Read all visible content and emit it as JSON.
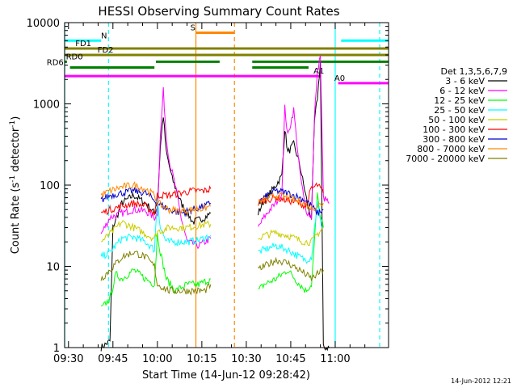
{
  "chart_data": {
    "type": "line",
    "title": "HESSI Observing Summary Count Rates",
    "xlabel": "Start Time (14-Jun-12 09:28:42)",
    "ylabel": "Count Rate (s⁻¹ detector⁻¹)",
    "ylabel_base": "Count Rate (s",
    "ylabel_mid": " detector",
    "ylabel_end": ")",
    "ylabel_sup": "-1",
    "yscale": "log",
    "ylim": [
      1,
      10000
    ],
    "xlim_minutes": [
      -1.3,
      108
    ],
    "y_ticks": [
      {
        "value": 1,
        "label": "1"
      },
      {
        "value": 10,
        "label": "10"
      },
      {
        "value": 100,
        "label": "100"
      },
      {
        "value": 1000,
        "label": "1000"
      },
      {
        "value": 10000,
        "label": "10000"
      }
    ],
    "x_ticks": [
      {
        "t": 0,
        "label": "09:30"
      },
      {
        "t": 15,
        "label": "09:45"
      },
      {
        "t": 30,
        "label": "10:00"
      },
      {
        "t": 45,
        "label": "10:15"
      },
      {
        "t": 60,
        "label": "10:30"
      },
      {
        "t": 75,
        "label": "10:45"
      },
      {
        "t": 90,
        "label": "11:00"
      }
    ],
    "legend_title": "Det 1,3,5,6,7,9",
    "legend_position": "right",
    "series": [
      {
        "name": "3 - 6 keV",
        "color": "#000000",
        "points": [
          [
            11,
            1
          ],
          [
            14,
            1.2
          ],
          [
            15,
            30
          ],
          [
            18,
            60
          ],
          [
            22,
            75
          ],
          [
            26,
            60
          ],
          [
            28,
            50
          ],
          [
            29,
            45
          ],
          [
            30,
            55
          ],
          [
            31,
            300
          ],
          [
            32,
            720
          ],
          [
            33,
            250
          ],
          [
            35,
            120
          ],
          [
            38,
            60
          ],
          [
            42,
            35
          ],
          [
            46,
            40
          ],
          [
            48,
            45
          ],
          [
            52,
            null
          ],
          [
            64,
            45
          ],
          [
            66,
            65
          ],
          [
            68,
            80
          ],
          [
            70,
            100
          ],
          [
            72,
            130
          ],
          [
            73,
            500
          ],
          [
            74,
            250
          ],
          [
            76,
            320
          ],
          [
            78,
            180
          ],
          [
            81,
            50
          ],
          [
            82,
            40
          ],
          [
            83,
            600
          ],
          [
            84,
            1200
          ],
          [
            85,
            3300
          ],
          [
            86,
            1
          ],
          [
            88,
            1
          ]
        ]
      },
      {
        "name": "6 - 12 keV",
        "color": "#ff00ff",
        "points": [
          [
            11,
            25
          ],
          [
            14,
            40
          ],
          [
            18,
            45
          ],
          [
            22,
            50
          ],
          [
            26,
            48
          ],
          [
            29,
            40
          ],
          [
            30,
            45
          ],
          [
            31,
            400
          ],
          [
            32,
            1450
          ],
          [
            33,
            400
          ],
          [
            34,
            200
          ],
          [
            36,
            100
          ],
          [
            38,
            40
          ],
          [
            40,
            20
          ],
          [
            44,
            18
          ],
          [
            48,
            22
          ],
          [
            52,
            null
          ],
          [
            64,
            30
          ],
          [
            66,
            40
          ],
          [
            68,
            50
          ],
          [
            70,
            60
          ],
          [
            72,
            80
          ],
          [
            73,
            900
          ],
          [
            74,
            400
          ],
          [
            76,
            850
          ],
          [
            78,
            150
          ],
          [
            80,
            50
          ],
          [
            82,
            40
          ],
          [
            83,
            700
          ],
          [
            84,
            2500
          ],
          [
            85,
            4000
          ],
          [
            86,
            70
          ],
          [
            88,
            60
          ]
        ]
      },
      {
        "name": "12 - 25 keV",
        "color": "#00ff00",
        "points": [
          [
            11,
            3
          ],
          [
            14,
            4
          ],
          [
            16,
            8
          ],
          [
            18,
            7
          ],
          [
            22,
            9
          ],
          [
            26,
            7
          ],
          [
            29,
            6
          ],
          [
            30,
            25
          ],
          [
            31,
            15
          ],
          [
            33,
            7
          ],
          [
            36,
            5
          ],
          [
            40,
            6
          ],
          [
            44,
            6
          ],
          [
            48,
            7
          ],
          [
            52,
            null
          ],
          [
            64,
            5
          ],
          [
            66,
            6
          ],
          [
            70,
            7
          ],
          [
            74,
            9
          ],
          [
            78,
            6
          ],
          [
            80,
            5
          ],
          [
            82,
            6
          ],
          [
            83,
            20
          ],
          [
            84,
            75
          ],
          [
            85,
            40
          ],
          [
            86,
            30
          ]
        ]
      },
      {
        "name": "25 - 50 keV",
        "color": "#00ffff",
        "points": [
          [
            11,
            13
          ],
          [
            14,
            15
          ],
          [
            18,
            22
          ],
          [
            22,
            23
          ],
          [
            26,
            20
          ],
          [
            29,
            16
          ],
          [
            30,
            70
          ],
          [
            31,
            30
          ],
          [
            33,
            20
          ],
          [
            36,
            20
          ],
          [
            40,
            20
          ],
          [
            44,
            21
          ],
          [
            48,
            24
          ],
          [
            52,
            null
          ],
          [
            64,
            15
          ],
          [
            66,
            16
          ],
          [
            70,
            18
          ],
          [
            74,
            16
          ],
          [
            78,
            13
          ],
          [
            80,
            12
          ],
          [
            82,
            13
          ],
          [
            83,
            30
          ],
          [
            84,
            60
          ],
          [
            85,
            35
          ],
          [
            86,
            30
          ]
        ]
      },
      {
        "name": "50 - 100 keV",
        "color": "#cccc00",
        "points": [
          [
            11,
            20
          ],
          [
            14,
            25
          ],
          [
            18,
            35
          ],
          [
            22,
            30
          ],
          [
            26,
            25
          ],
          [
            29,
            22
          ],
          [
            30,
            27
          ],
          [
            32,
            28
          ],
          [
            34,
            30
          ],
          [
            36,
            30
          ],
          [
            40,
            30
          ],
          [
            44,
            32
          ],
          [
            48,
            33
          ],
          [
            52,
            null
          ],
          [
            64,
            22
          ],
          [
            66,
            24
          ],
          [
            70,
            26
          ],
          [
            74,
            24
          ],
          [
            78,
            21
          ],
          [
            80,
            20
          ],
          [
            82,
            20
          ],
          [
            84,
            25
          ],
          [
            86,
            30
          ]
        ]
      },
      {
        "name": "100 - 300 keV",
        "color": "#ff0000",
        "points": [
          [
            11,
            45
          ],
          [
            14,
            50
          ],
          [
            18,
            55
          ],
          [
            22,
            60
          ],
          [
            26,
            55
          ],
          [
            29,
            45
          ],
          [
            30,
            75
          ],
          [
            34,
            75
          ],
          [
            38,
            80
          ],
          [
            42,
            85
          ],
          [
            46,
            85
          ],
          [
            48,
            90
          ],
          [
            52,
            null
          ],
          [
            64,
            60
          ],
          [
            66,
            65
          ],
          [
            70,
            70
          ],
          [
            74,
            65
          ],
          [
            78,
            60
          ],
          [
            80,
            55
          ],
          [
            82,
            90
          ],
          [
            84,
            100
          ],
          [
            85,
            90
          ],
          [
            86,
            80
          ]
        ]
      },
      {
        "name": "300 - 800 keV",
        "color": "#0000cc",
        "points": [
          [
            11,
            65
          ],
          [
            14,
            75
          ],
          [
            18,
            80
          ],
          [
            22,
            85
          ],
          [
            26,
            80
          ],
          [
            29,
            65
          ],
          [
            30,
            60
          ],
          [
            34,
            50
          ],
          [
            38,
            45
          ],
          [
            42,
            50
          ],
          [
            46,
            55
          ],
          [
            48,
            60
          ],
          [
            52,
            null
          ],
          [
            64,
            60
          ],
          [
            66,
            70
          ],
          [
            70,
            85
          ],
          [
            74,
            80
          ],
          [
            78,
            70
          ],
          [
            80,
            65
          ],
          [
            82,
            55
          ],
          [
            84,
            45
          ],
          [
            86,
            50
          ]
        ]
      },
      {
        "name": "800 - 7000 keV",
        "color": "#ff8800",
        "points": [
          [
            11,
            75
          ],
          [
            14,
            85
          ],
          [
            18,
            95
          ],
          [
            22,
            100
          ],
          [
            26,
            90
          ],
          [
            29,
            75
          ],
          [
            30,
            60
          ],
          [
            34,
            50
          ],
          [
            38,
            48
          ],
          [
            42,
            50
          ],
          [
            46,
            52
          ],
          [
            48,
            55
          ],
          [
            52,
            null
          ],
          [
            64,
            60
          ],
          [
            66,
            65
          ],
          [
            70,
            75
          ],
          [
            74,
            70
          ],
          [
            78,
            62
          ],
          [
            80,
            58
          ],
          [
            82,
            52
          ],
          [
            84,
            55
          ],
          [
            86,
            60
          ]
        ]
      },
      {
        "name": "7000 - 20000 keV",
        "color": "#808000",
        "points": [
          [
            11,
            7
          ],
          [
            14,
            9
          ],
          [
            18,
            13
          ],
          [
            22,
            15
          ],
          [
            26,
            13
          ],
          [
            29,
            10
          ],
          [
            30,
            6
          ],
          [
            34,
            5
          ],
          [
            38,
            5
          ],
          [
            42,
            5
          ],
          [
            46,
            5
          ],
          [
            48,
            6
          ],
          [
            52,
            null
          ],
          [
            64,
            9
          ],
          [
            66,
            10
          ],
          [
            70,
            12
          ],
          [
            74,
            11
          ],
          [
            78,
            9
          ],
          [
            80,
            8
          ],
          [
            82,
            7
          ],
          [
            84,
            8
          ],
          [
            86,
            9
          ]
        ]
      }
    ],
    "annotations": {
      "flags": [
        {
          "label": "N",
          "color": "#00ffff",
          "value": 6000,
          "segments": [
            [
              -1.3,
              11
            ]
          ],
          "label_at": 12
        },
        {
          "label": "",
          "color": "#00ffff",
          "value": 6000,
          "segments": [
            [
              92,
              108
            ]
          ]
        },
        {
          "label": "FD1",
          "color": "#808000",
          "value": 4800,
          "segments": [
            [
              -1.3,
              108
            ]
          ],
          "label_at": 5
        },
        {
          "label": "FD2",
          "color": "#808000",
          "value": 4000,
          "segments": [
            [
              -1.3,
              108
            ]
          ],
          "label_at": 12.5
        },
        {
          "label": "RD0",
          "color": "#008000",
          "value": 3300,
          "segments": [
            [
              -1.3,
              -0.5
            ],
            [
              29.5,
              51
            ],
            [
              62,
              108
            ]
          ],
          "label_at": 2
        },
        {
          "label": "RD6",
          "color": "#008000",
          "value": 2800,
          "segments": [
            [
              0.5,
              29
            ],
            [
              62,
              81
            ]
          ],
          "label_at": -4.5
        },
        {
          "label": "A1",
          "color": "#ff00ff",
          "value": 2200,
          "segments": [
            [
              -1.3,
              85
            ]
          ],
          "label_at": 84.5
        },
        {
          "label": "A0",
          "color": "#ff00ff",
          "value": 1800,
          "segments": [
            [
              91,
              108
            ]
          ],
          "label_at": 91.5
        },
        {
          "label": "S",
          "color": "#ff8800",
          "value": 7500,
          "segments": [
            [
              43,
              56
            ]
          ],
          "label_at": 42
        }
      ],
      "vlines": [
        {
          "t": -1.3,
          "color": "#00ffff",
          "style": "solid"
        },
        {
          "t": 13.5,
          "color": "#00ffff",
          "style": "dashed"
        },
        {
          "t": 43,
          "color": "#ff8800",
          "style": "solid"
        },
        {
          "t": 56,
          "color": "#ff8800",
          "style": "dashed"
        },
        {
          "t": 90,
          "color": "#00ffff",
          "style": "solid"
        },
        {
          "t": 105,
          "color": "#00ffff",
          "style": "dashed"
        }
      ]
    },
    "grid": false
  },
  "footer": {
    "timestamp": "14-Jun-2012 12:21"
  }
}
